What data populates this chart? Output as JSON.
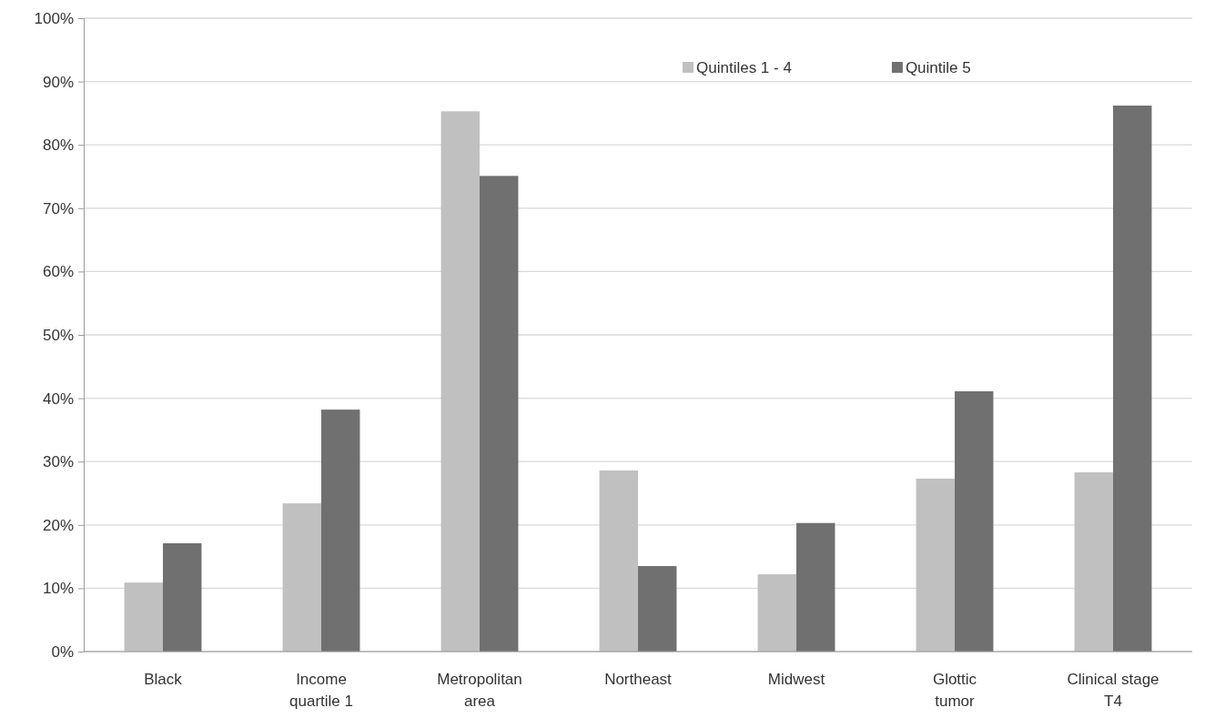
{
  "chart_data": {
    "type": "bar",
    "categories": [
      "Black",
      "Income\nquartile 1",
      "Metropolitan\narea",
      "Northeast",
      "Midwest",
      "Glottic\ntumor",
      "Clinical stage\nT4"
    ],
    "series": [
      {
        "name": "Quintiles 1 - 4",
        "color": "#c0c0c0",
        "values": [
          10.9,
          23.4,
          85.3,
          28.6,
          12.2,
          27.3,
          28.3
        ]
      },
      {
        "name": "Quintile 5",
        "color": "#707070",
        "values": [
          17.1,
          38.2,
          75.1,
          13.5,
          20.3,
          41.1,
          86.2
        ]
      }
    ],
    "ylim": [
      0,
      100
    ],
    "yticks": [
      {
        "value": 0,
        "label": "0%"
      },
      {
        "value": 10,
        "label": "10%"
      },
      {
        "value": 20,
        "label": "20%"
      },
      {
        "value": 30,
        "label": "30%"
      },
      {
        "value": 40,
        "label": "40%"
      },
      {
        "value": 50,
        "label": "50%"
      },
      {
        "value": 60,
        "label": "60%"
      },
      {
        "value": 70,
        "label": "70%"
      },
      {
        "value": 80,
        "label": "80%"
      },
      {
        "value": 90,
        "label": "90%"
      },
      {
        "value": 100,
        "label": "100%"
      }
    ],
    "grid": "y",
    "legend": "top right"
  }
}
